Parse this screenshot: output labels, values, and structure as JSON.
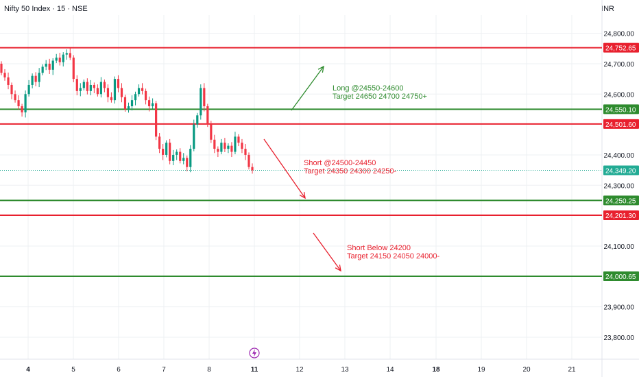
{
  "header": {
    "symbol_title": "Nifty 50 Index · 15 · NSE",
    "currency": "INR"
  },
  "colors": {
    "up": "#089981",
    "down": "#f23645",
    "resistance": "#e8202e",
    "support": "#2e8b2e",
    "grid": "#eef0f3",
    "text": "#131722",
    "last_price_bg": "#22ab94"
  },
  "chart_data": {
    "type": "candlestick",
    "ylim": [
      23730,
      24860
    ],
    "y_ticks": [
      {
        "value": 24800,
        "label": "24,800.00"
      },
      {
        "value": 24700,
        "label": "24,700.00"
      },
      {
        "value": 24600,
        "label": "24,600.00"
      },
      {
        "value": 24400,
        "label": "24,400.00"
      },
      {
        "value": 24300,
        "label": "24,300.00"
      },
      {
        "value": 24100,
        "label": "24,100.00"
      },
      {
        "value": 23900,
        "label": "23,900.00"
      },
      {
        "value": 23800,
        "label": "23,800.00"
      }
    ],
    "x_ticks": [
      {
        "value": 4,
        "label": "4",
        "bold": true
      },
      {
        "value": 5,
        "label": "5",
        "bold": false
      },
      {
        "value": 6,
        "label": "6",
        "bold": false
      },
      {
        "value": 7,
        "label": "7",
        "bold": false
      },
      {
        "value": 8,
        "label": "8",
        "bold": false
      },
      {
        "value": 11,
        "label": "11",
        "bold": true
      },
      {
        "value": 12,
        "label": "12",
        "bold": false
      },
      {
        "value": 13,
        "label": "13",
        "bold": false
      },
      {
        "value": 14,
        "label": "14",
        "bold": false
      },
      {
        "value": 18,
        "label": "18",
        "bold": true
      },
      {
        "value": 19,
        "label": "19",
        "bold": false
      },
      {
        "value": 20,
        "label": "20",
        "bold": false
      },
      {
        "value": 21,
        "label": "21",
        "bold": false
      }
    ],
    "horizontal_levels": [
      {
        "value": 24752.65,
        "label": "24,752.65",
        "kind": "resistance"
      },
      {
        "value": 24550.1,
        "label": "24,550.10",
        "kind": "support"
      },
      {
        "value": 24501.6,
        "label": "24,501.60",
        "kind": "resistance"
      },
      {
        "value": 24250.25,
        "label": "24,250.25",
        "kind": "support"
      },
      {
        "value": 24201.3,
        "label": "24,201.30",
        "kind": "resistance"
      },
      {
        "value": 24000.65,
        "label": "24,000.65",
        "kind": "support"
      }
    ],
    "last_price": {
      "value": 24349.2,
      "label": "24,349.20"
    },
    "closes": [
      24670,
      24655,
      24630,
      24600,
      24580,
      24560,
      24540,
      24600,
      24630,
      24660,
      24640,
      24670,
      24690,
      24700,
      24680,
      24710,
      24720,
      24705,
      24730,
      24735,
      24720,
      24650,
      24610,
      24620,
      24640,
      24610,
      24630,
      24620,
      24600,
      24640,
      24620,
      24590,
      24580,
      24650,
      24620,
      24590,
      24550,
      24560,
      24580,
      24600,
      24620,
      24610,
      24580,
      24560,
      24570,
      24460,
      24420,
      24400,
      24440,
      24380,
      24400,
      24410,
      24380,
      24390,
      24360,
      24420,
      24500,
      24530,
      24620,
      24560,
      24500,
      24450,
      24420,
      24410,
      24440,
      24420,
      24430,
      24410,
      24460,
      24440,
      24420,
      24400,
      24360,
      24349.2
    ],
    "annotations": [
      {
        "lines": [
          "Long @24550-24600",
          "Target 24650 24700 24750+"
        ],
        "color": "support",
        "arrow": "up"
      },
      {
        "lines": [
          "Short @24500-24450",
          "Target 24350 24300 24250-"
        ],
        "color": "resistance",
        "arrow": "down"
      },
      {
        "lines": [
          "Short Below 24200",
          "Target 24150 24050 24000-"
        ],
        "color": "resistance",
        "arrow": "down"
      }
    ]
  }
}
